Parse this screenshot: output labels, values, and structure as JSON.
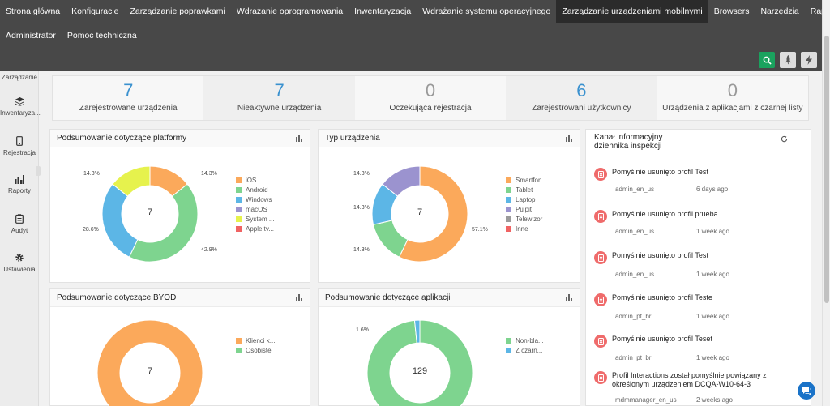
{
  "nav": {
    "row1": [
      "Strona główna",
      "Konfiguracje",
      "Zarządzanie poprawkami",
      "Wdrażanie oprogramowania",
      "Inwentaryzacja",
      "Wdrażanie systemu operacyjnego",
      "Zarządzanie urządzeniami mobilnymi",
      "Browsers",
      "Narzędzia",
      "Raporty"
    ],
    "row2": [
      "Administrator",
      "Pomoc techniczna"
    ],
    "active_index": 6
  },
  "sidebar": {
    "items": [
      {
        "label": "Zarządzanie",
        "icon": "manage-icon"
      },
      {
        "label": "Inwentaryza...",
        "icon": "stack-icon"
      },
      {
        "label": "Rejestracja",
        "icon": "phone-icon"
      },
      {
        "label": "Raporty",
        "icon": "bar-chart-icon"
      },
      {
        "label": "Audyt",
        "icon": "clipboard-icon"
      },
      {
        "label": "Ustawienia",
        "icon": "gear-icon"
      }
    ]
  },
  "summary": [
    {
      "value": "7",
      "label": "Zarejestrowane urządzenia",
      "color": "#3a91cf"
    },
    {
      "value": "7",
      "label": "Nieaktywne urządzenia",
      "color": "#3a91cf"
    },
    {
      "value": "0",
      "label": "Oczekująca rejestracja",
      "color": "#999999"
    },
    {
      "value": "6",
      "label": "Zarejestrowani użytkownicy",
      "color": "#3a91cf"
    },
    {
      "value": "0",
      "label": "Urządzenia z aplikacjami z czarnej listy",
      "color": "#999999"
    }
  ],
  "panels": {
    "platform": {
      "title": "Podsumowanie dotyczące platformy",
      "center": "7"
    },
    "device_type": {
      "title": "Typ urządzenia",
      "center": "7"
    },
    "byod": {
      "title": "Podsumowanie dotyczące BYOD",
      "center": "7"
    },
    "apps": {
      "title": "Podsumowanie dotyczące aplikacji",
      "center": "129"
    }
  },
  "chart_data": [
    {
      "type": "pie",
      "title": "Podsumowanie dotyczące platformy",
      "categories": [
        "iOS",
        "Android",
        "Windows",
        "macOS",
        "System ...",
        "Apple tv..."
      ],
      "values": [
        14.3,
        42.9,
        28.6,
        0,
        14.3,
        0
      ],
      "labels": [
        "14.3%",
        "42.9%",
        "28.6%",
        "",
        "14.3%",
        ""
      ],
      "colors": [
        "#fba95b",
        "#7ed48f",
        "#5cb6e6",
        "#9b93cf",
        "#e6f24d",
        "#f06363"
      ],
      "center": "7",
      "legend": "right"
    },
    {
      "type": "pie",
      "title": "Typ urządzenia",
      "categories": [
        "Smartfon",
        "Tablet",
        "Laptop",
        "Pulpit",
        "Telewizor",
        "Inne"
      ],
      "values": [
        57.1,
        14.3,
        14.3,
        14.3,
        0,
        0
      ],
      "labels": [
        "57.1%",
        "14.3%",
        "14.3%",
        "14.3%",
        "",
        ""
      ],
      "colors": [
        "#fba95b",
        "#7ed48f",
        "#5cb6e6",
        "#9b93cf",
        "#9b9b9b",
        "#f06363"
      ],
      "center": "7",
      "legend": "right"
    },
    {
      "type": "pie",
      "title": "Podsumowanie dotyczące BYOD",
      "categories": [
        "Klienci k...",
        "Osobiste"
      ],
      "values": [
        100,
        0
      ],
      "labels": [
        "",
        ""
      ],
      "colors": [
        "#fba95b",
        "#7ed48f"
      ],
      "center": "7",
      "legend": "right"
    },
    {
      "type": "pie",
      "title": "Podsumowanie dotyczące aplikacji",
      "categories": [
        "Non-bla...",
        "Z czarn..."
      ],
      "values": [
        98.4,
        1.6
      ],
      "labels": [
        "",
        "1.6%"
      ],
      "colors": [
        "#7ed48f",
        "#5cb6e6"
      ],
      "center": "129",
      "legend": "right"
    }
  ],
  "feed": {
    "title_line1": "Kanał informacyjny",
    "title_line2": "dziennika inspekcji",
    "items": [
      {
        "text": "Pomyślnie usunięto profil Test",
        "user": "admin_en_us",
        "time": "6 days ago"
      },
      {
        "text": "Pomyślnie usunięto profil prueba",
        "user": "admin_en_us",
        "time": "1 week ago"
      },
      {
        "text": "Pomyślnie usunięto profil Test",
        "user": "admin_en_us",
        "time": "1 week ago"
      },
      {
        "text": "Pomyślnie usunięto profil Teste",
        "user": "admin_pt_br",
        "time": "1 week ago"
      },
      {
        "text": "Pomyślnie usunięto profil Teset",
        "user": "admin_pt_br",
        "time": "1 week ago"
      },
      {
        "text": "Profil Interactions został pomyślnie powiązany z określonym urządzeniem DCQA-W10-64-3",
        "user": "mdmmanager_en_us",
        "time": "2 weeks ago"
      }
    ]
  }
}
